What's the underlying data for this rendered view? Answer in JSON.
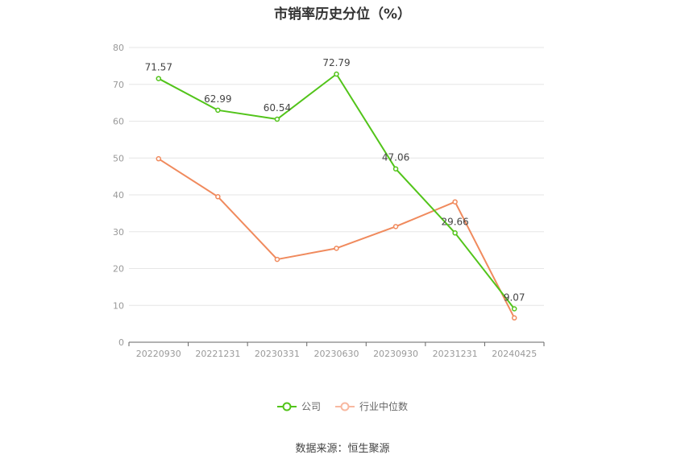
{
  "chart_data": {
    "type": "line",
    "title": "市销率历史分位（%）",
    "categories": [
      "20220930",
      "20221231",
      "20230331",
      "20230630",
      "20230930",
      "20231231",
      "20240425"
    ],
    "y_ticks": [
      "0",
      "10",
      "20",
      "30",
      "40",
      "50",
      "60",
      "70",
      "80"
    ],
    "ylim": [
      0,
      80
    ],
    "grid": true,
    "legend_position": "bottom",
    "series": [
      {
        "name": "公司",
        "color": "#52c41a",
        "values": [
          71.57,
          62.99,
          60.54,
          72.79,
          47.06,
          29.66,
          9.07
        ],
        "labels": [
          "71.57",
          "62.99",
          "60.54",
          "72.79",
          "47.06",
          "29.66",
          "9.07"
        ]
      },
      {
        "name": "行业中位数",
        "color": "#f08a5d",
        "values": [
          49.8,
          39.5,
          22.5,
          25.5,
          31.4,
          38.1,
          6.6
        ]
      }
    ]
  },
  "source_text": "数据来源：恒生聚源"
}
